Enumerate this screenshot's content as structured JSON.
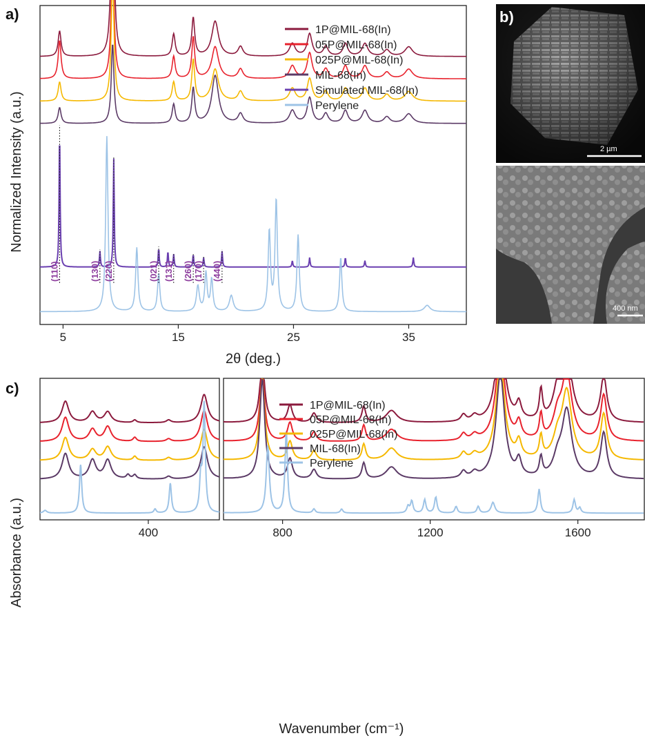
{
  "figure": {
    "panel_labels": {
      "a": "a)",
      "b": "b)",
      "c": "c)"
    },
    "sem": {
      "top_scalebar": "2 µm",
      "bottom_scalebar": "400 nm"
    }
  },
  "chart_data": [
    {
      "panel": "a",
      "type": "line",
      "xlabel": "2θ (deg.)",
      "ylabel": "Normalized Intensity (a.u.)",
      "xlim": [
        3,
        40
      ],
      "xticks": [
        5,
        15,
        25,
        35
      ],
      "tick_labels": [
        "5",
        "15",
        "25",
        "35"
      ],
      "yticks": [],
      "legend_position": "top-right",
      "series": [
        {
          "name": "1P@MIL-68(In)",
          "color": "#8b1a3d",
          "offset": 0.84,
          "peaks": [
            [
              4.7,
              0.08,
              0.15
            ],
            [
              9.3,
              0.66,
              0.14
            ],
            [
              14.6,
              0.07,
              0.15
            ],
            [
              16.3,
              0.12,
              0.15
            ],
            [
              18.2,
              0.11,
              0.35
            ],
            [
              20.4,
              0.03,
              0.25
            ],
            [
              24.9,
              0.04,
              0.3
            ],
            [
              26.4,
              0.07,
              0.25
            ],
            [
              27.8,
              0.03,
              0.25
            ],
            [
              29.5,
              0.04,
              0.25
            ],
            [
              31.2,
              0.04,
              0.3
            ],
            [
              33.1,
              0.02,
              0.3
            ],
            [
              35.0,
              0.03,
              0.4
            ]
          ]
        },
        {
          "name": "05P@MIL-68(In)",
          "color": "#e8222d",
          "offset": 0.77,
          "peaks": [
            [
              4.7,
              0.12,
              0.15
            ],
            [
              9.3,
              0.44,
              0.14
            ],
            [
              14.6,
              0.07,
              0.15
            ],
            [
              16.3,
              0.13,
              0.15
            ],
            [
              18.2,
              0.1,
              0.35
            ],
            [
              20.4,
              0.03,
              0.25
            ],
            [
              24.9,
              0.04,
              0.3
            ],
            [
              26.4,
              0.08,
              0.25
            ],
            [
              27.8,
              0.03,
              0.25
            ],
            [
              29.5,
              0.04,
              0.25
            ],
            [
              31.2,
              0.04,
              0.3
            ],
            [
              33.1,
              0.02,
              0.3
            ],
            [
              35.0,
              0.03,
              0.4
            ]
          ]
        },
        {
          "name": "025P@MIL-68(In)",
          "color": "#f5b800",
          "offset": 0.7,
          "peaks": [
            [
              4.7,
              0.06,
              0.15
            ],
            [
              9.3,
              0.4,
              0.14
            ],
            [
              14.6,
              0.06,
              0.15
            ],
            [
              16.3,
              0.13,
              0.15
            ],
            [
              18.2,
              0.1,
              0.35
            ],
            [
              20.4,
              0.03,
              0.25
            ],
            [
              24.9,
              0.04,
              0.3
            ],
            [
              26.4,
              0.07,
              0.25
            ],
            [
              27.8,
              0.03,
              0.25
            ],
            [
              29.5,
              0.04,
              0.25
            ],
            [
              31.2,
              0.04,
              0.3
            ],
            [
              33.1,
              0.02,
              0.3
            ],
            [
              35.0,
              0.03,
              0.4
            ]
          ]
        },
        {
          "name": "MIL-68(In)",
          "color": "#5b3a66",
          "offset": 0.63,
          "peaks": [
            [
              4.7,
              0.05,
              0.15
            ],
            [
              9.3,
              0.25,
              0.14
            ],
            [
              14.6,
              0.06,
              0.15
            ],
            [
              16.3,
              0.11,
              0.15
            ],
            [
              18.2,
              0.15,
              0.35
            ],
            [
              20.4,
              0.03,
              0.25
            ],
            [
              24.9,
              0.04,
              0.3
            ],
            [
              26.4,
              0.08,
              0.25
            ],
            [
              27.8,
              0.03,
              0.25
            ],
            [
              29.5,
              0.04,
              0.25
            ],
            [
              31.2,
              0.04,
              0.3
            ],
            [
              33.1,
              0.02,
              0.3
            ],
            [
              35.0,
              0.03,
              0.4
            ]
          ]
        },
        {
          "name": "Simulated MIL-68(In)",
          "color": "#6a3fb0",
          "offset": 0.18,
          "peaks": [
            [
              4.7,
              0.44,
              0.05
            ],
            [
              8.2,
              0.05,
              0.05
            ],
            [
              9.4,
              0.34,
              0.05
            ],
            [
              13.3,
              0.06,
              0.05
            ],
            [
              14.1,
              0.05,
              0.05
            ],
            [
              14.6,
              0.04,
              0.05
            ],
            [
              16.3,
              0.04,
              0.05
            ],
            [
              17.2,
              0.03,
              0.05
            ],
            [
              18.8,
              0.05,
              0.05
            ],
            [
              24.9,
              0.02,
              0.05
            ],
            [
              26.4,
              0.03,
              0.05
            ],
            [
              29.5,
              0.03,
              0.05
            ],
            [
              31.2,
              0.02,
              0.05
            ],
            [
              35.4,
              0.03,
              0.05
            ]
          ]
        },
        {
          "name": "Perylene",
          "color": "#9dc3e6",
          "offset": 0.04,
          "peaks": [
            [
              8.8,
              0.55,
              0.12
            ],
            [
              11.4,
              0.2,
              0.12
            ],
            [
              13.3,
              0.12,
              0.12
            ],
            [
              16.7,
              0.08,
              0.15
            ],
            [
              17.4,
              0.12,
              0.12
            ],
            [
              17.9,
              0.1,
              0.12
            ],
            [
              19.6,
              0.05,
              0.2
            ],
            [
              22.9,
              0.25,
              0.12
            ],
            [
              23.5,
              0.35,
              0.12
            ],
            [
              25.4,
              0.24,
              0.12
            ],
            [
              29.1,
              0.17,
              0.12
            ],
            [
              36.6,
              0.02,
              0.3
            ]
          ]
        }
      ],
      "annotations": [
        {
          "text": "(110)",
          "x": 4.7
        },
        {
          "text": "(130)",
          "x": 8.2
        },
        {
          "text": "(220)",
          "x": 9.4
        },
        {
          "text": "(021)",
          "x": 13.3
        },
        {
          "text": "(131)",
          "x": 14.6
        },
        {
          "text": "(260)",
          "x": 16.3
        },
        {
          "text": "(170)",
          "x": 17.2
        },
        {
          "text": "(440)",
          "x": 18.8
        }
      ]
    },
    {
      "panel": "c",
      "type": "line",
      "xlabel": "Wavenumber (cm⁻¹)",
      "ylabel": "Absorbance (a.u.)",
      "xlim_left": [
        80,
        610
      ],
      "xlim_right": [
        640,
        1780
      ],
      "xticks_left": [
        400
      ],
      "xticks_right": [
        800,
        1200,
        1600
      ],
      "tick_labels_left": [
        "400"
      ],
      "tick_labels_right": [
        "800",
        "1200",
        "1600"
      ],
      "yticks": [],
      "legend_position": "top-center",
      "series": [
        {
          "name": "1P@MIL-68(In)",
          "color": "#8b1a3d",
          "offset": 0.72,
          "peaks": [
            [
              155,
              0.16,
              12
            ],
            [
              235,
              0.08,
              12
            ],
            [
              280,
              0.08,
              12
            ],
            [
              360,
              0.02,
              6
            ],
            [
              460,
              0.02,
              8
            ],
            [
              565,
              0.21,
              12
            ],
            [
              745,
              0.45,
              8
            ],
            [
              820,
              0.13,
              8
            ],
            [
              885,
              0.07,
              8
            ],
            [
              1020,
              0.12,
              6
            ],
            [
              1095,
              0.09,
              18
            ],
            [
              1290,
              0.05,
              8
            ],
            [
              1320,
              0.04,
              10
            ],
            [
              1390,
              0.72,
              14
            ],
            [
              1440,
              0.12,
              8
            ],
            [
              1500,
              0.22,
              5
            ],
            [
              1545,
              0.2,
              14
            ],
            [
              1570,
              0.5,
              16
            ],
            [
              1670,
              0.34,
              10
            ]
          ]
        },
        {
          "name": "05P@MIL-68(In)",
          "color": "#e8222d",
          "offset": 0.58,
          "peaks": [
            [
              155,
              0.18,
              12
            ],
            [
              235,
              0.09,
              12
            ],
            [
              280,
              0.11,
              12
            ],
            [
              360,
              0.03,
              6
            ],
            [
              460,
              0.02,
              8
            ],
            [
              565,
              0.23,
              12
            ],
            [
              745,
              0.5,
              8
            ],
            [
              820,
              0.14,
              8
            ],
            [
              885,
              0.07,
              8
            ],
            [
              1020,
              0.12,
              6
            ],
            [
              1095,
              0.09,
              18
            ],
            [
              1290,
              0.05,
              8
            ],
            [
              1320,
              0.04,
              10
            ],
            [
              1390,
              0.72,
              14
            ],
            [
              1440,
              0.12,
              8
            ],
            [
              1500,
              0.18,
              5
            ],
            [
              1545,
              0.16,
              14
            ],
            [
              1570,
              0.5,
              16
            ],
            [
              1670,
              0.34,
              10
            ]
          ]
        },
        {
          "name": "025P@MIL-68(In)",
          "color": "#f5b800",
          "offset": 0.44,
          "peaks": [
            [
              155,
              0.17,
              12
            ],
            [
              235,
              0.08,
              12
            ],
            [
              280,
              0.1,
              12
            ],
            [
              360,
              0.03,
              6
            ],
            [
              460,
              0.02,
              8
            ],
            [
              565,
              0.23,
              12
            ],
            [
              745,
              0.62,
              8
            ],
            [
              820,
              0.14,
              8
            ],
            [
              885,
              0.07,
              8
            ],
            [
              1020,
              0.12,
              6
            ],
            [
              1095,
              0.09,
              18
            ],
            [
              1290,
              0.05,
              8
            ],
            [
              1320,
              0.04,
              10
            ],
            [
              1390,
              0.72,
              14
            ],
            [
              1440,
              0.12,
              8
            ],
            [
              1500,
              0.16,
              5
            ],
            [
              1545,
              0.14,
              14
            ],
            [
              1570,
              0.5,
              16
            ],
            [
              1670,
              0.34,
              10
            ]
          ]
        },
        {
          "name": "MIL-68(In)",
          "color": "#5b3a66",
          "offset": 0.3,
          "peaks": [
            [
              155,
              0.19,
              12
            ],
            [
              235,
              0.14,
              12
            ],
            [
              280,
              0.14,
              12
            ],
            [
              340,
              0.03,
              6
            ],
            [
              360,
              0.03,
              6
            ],
            [
              460,
              0.02,
              8
            ],
            [
              565,
              0.24,
              12
            ],
            [
              745,
              0.75,
              8
            ],
            [
              820,
              0.15,
              8
            ],
            [
              885,
              0.07,
              8
            ],
            [
              1020,
              0.12,
              6
            ],
            [
              1095,
              0.09,
              18
            ],
            [
              1290,
              0.05,
              8
            ],
            [
              1320,
              0.04,
              10
            ],
            [
              1390,
              0.78,
              14
            ],
            [
              1440,
              0.12,
              8
            ],
            [
              1500,
              0.14,
              5
            ],
            [
              1545,
              0.12,
              14
            ],
            [
              1570,
              0.5,
              16
            ],
            [
              1670,
              0.34,
              10
            ]
          ]
        },
        {
          "name": "Perylene",
          "color": "#9dc3e6",
          "offset": 0.05,
          "peaks": [
            [
              95,
              0.02,
              6
            ],
            [
              200,
              0.36,
              4
            ],
            [
              420,
              0.03,
              4
            ],
            [
              465,
              0.22,
              4
            ],
            [
              555,
              0.25,
              4
            ],
            [
              565,
              0.8,
              4
            ],
            [
              760,
              0.5,
              5
            ],
            [
              810,
              0.62,
              4
            ],
            [
              885,
              0.03,
              4
            ],
            [
              960,
              0.03,
              4
            ],
            [
              1140,
              0.05,
              4
            ],
            [
              1150,
              0.09,
              4
            ],
            [
              1185,
              0.1,
              4
            ],
            [
              1215,
              0.12,
              4
            ],
            [
              1270,
              0.05,
              4
            ],
            [
              1330,
              0.05,
              4
            ],
            [
              1370,
              0.08,
              6
            ],
            [
              1495,
              0.18,
              4
            ],
            [
              1590,
              0.1,
              4
            ],
            [
              1605,
              0.04,
              4
            ]
          ]
        }
      ]
    }
  ]
}
